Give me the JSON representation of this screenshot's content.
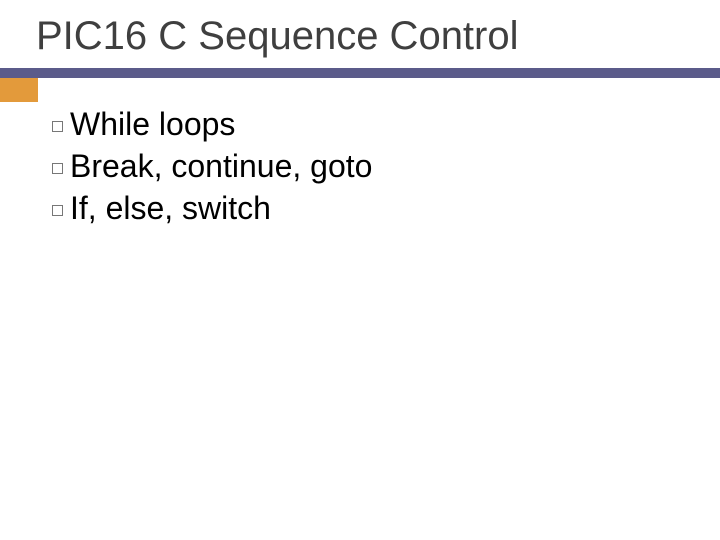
{
  "slide": {
    "title": "PIC16 C Sequence Control",
    "bullets": [
      "While loops",
      "Break, continue, goto",
      "If, else, switch"
    ]
  },
  "style": {
    "background_color": "#ffffff",
    "title_color": "#3f3f3f",
    "title_fontsize": 40,
    "underline_color": "#5b5b8a",
    "underline_height": 10,
    "accent_color": "#e39a3b",
    "accent_width": 38,
    "accent_height": 24,
    "bullet_box_border": "#777777",
    "bullet_text_color": "#000000",
    "bullet_fontsize": 32
  }
}
